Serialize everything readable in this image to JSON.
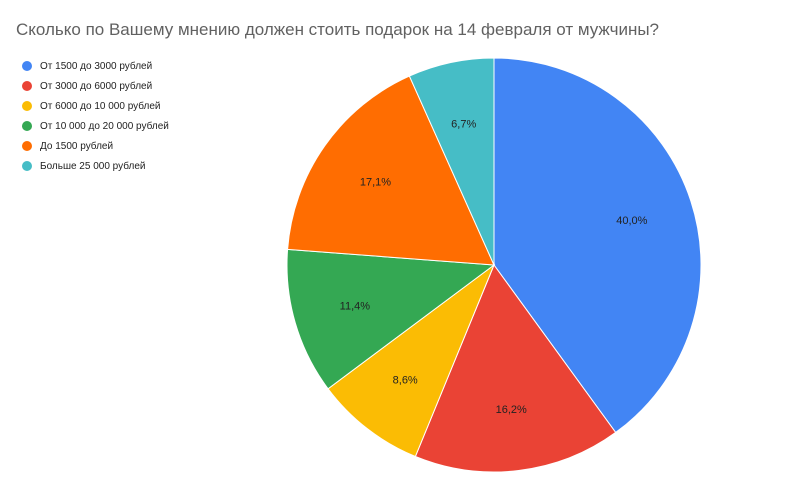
{
  "chart_data": {
    "type": "pie",
    "title": "Сколько по Вашему мнению должен стоить подарок на 14 февраля от мужчины?",
    "legend_position": "left",
    "categories": [
      "От 1500 до 3000 рублей",
      "От 3000 до 6000 рублей",
      "От 6000 до 10 000 рублей",
      "От 10 000 до 20 000 рублей",
      "До 1500 рублей",
      "Больше 25 000 рублей"
    ],
    "values": [
      40.0,
      16.2,
      8.6,
      11.4,
      17.1,
      6.7
    ],
    "labels": [
      "40,0%",
      "16,2%",
      "8,6%",
      "11,4%",
      "17,1%",
      "6,7%"
    ],
    "colors": [
      "#4285f4",
      "#ea4335",
      "#fbbc04",
      "#34a853",
      "#ff6d01",
      "#46bdc6"
    ],
    "unit": "%"
  }
}
